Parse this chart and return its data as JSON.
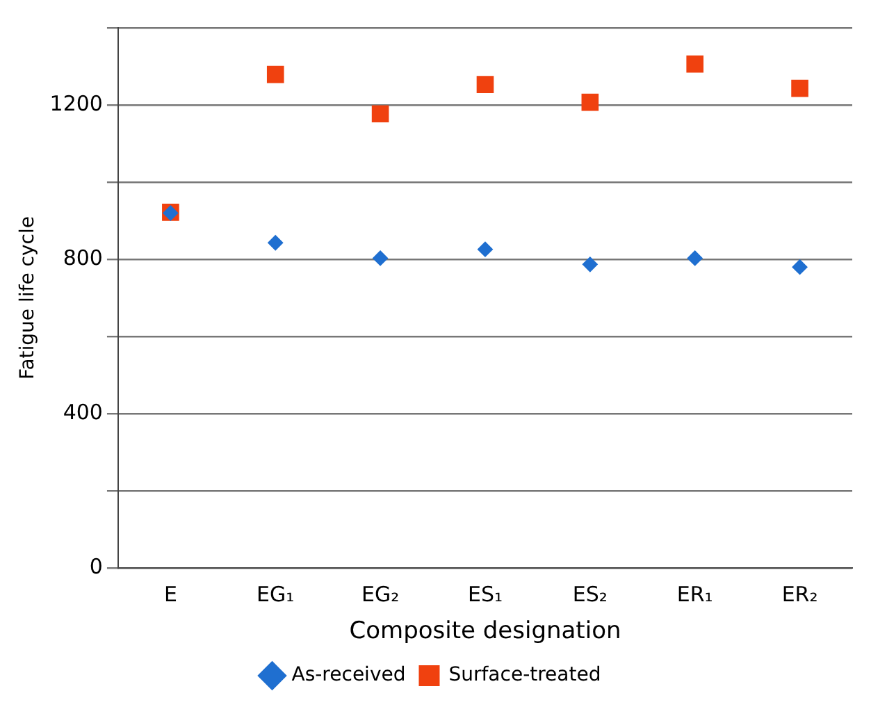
{
  "chart_data": {
    "type": "scatter",
    "xlabel": "Composite designation",
    "ylabel": "Fatigue life cycle",
    "categories": [
      "E",
      "EG₁",
      "EG₂",
      "ES₁",
      "ES₂",
      "ER₁",
      "ER₂"
    ],
    "series": [
      {
        "name": "As-received",
        "color": "#1f6fd0",
        "marker": "diamond",
        "values": [
          920,
          843,
          803,
          826,
          787,
          803,
          780
        ]
      },
      {
        "name": "Surface-treated",
        "color": "#f0410f",
        "marker": "square",
        "values": [
          922,
          1279,
          1177,
          1253,
          1207,
          1306,
          1243
        ]
      }
    ],
    "ylim": [
      0,
      1400
    ],
    "yticks": [
      0,
      {
        "value": 200,
        "label": null
      },
      400,
      {
        "value": 600,
        "label": null
      },
      800,
      {
        "value": 1000,
        "label": null
      },
      1200,
      {
        "value": 1400,
        "label": null
      }
    ],
    "grid": "y",
    "legend": "bottom"
  }
}
